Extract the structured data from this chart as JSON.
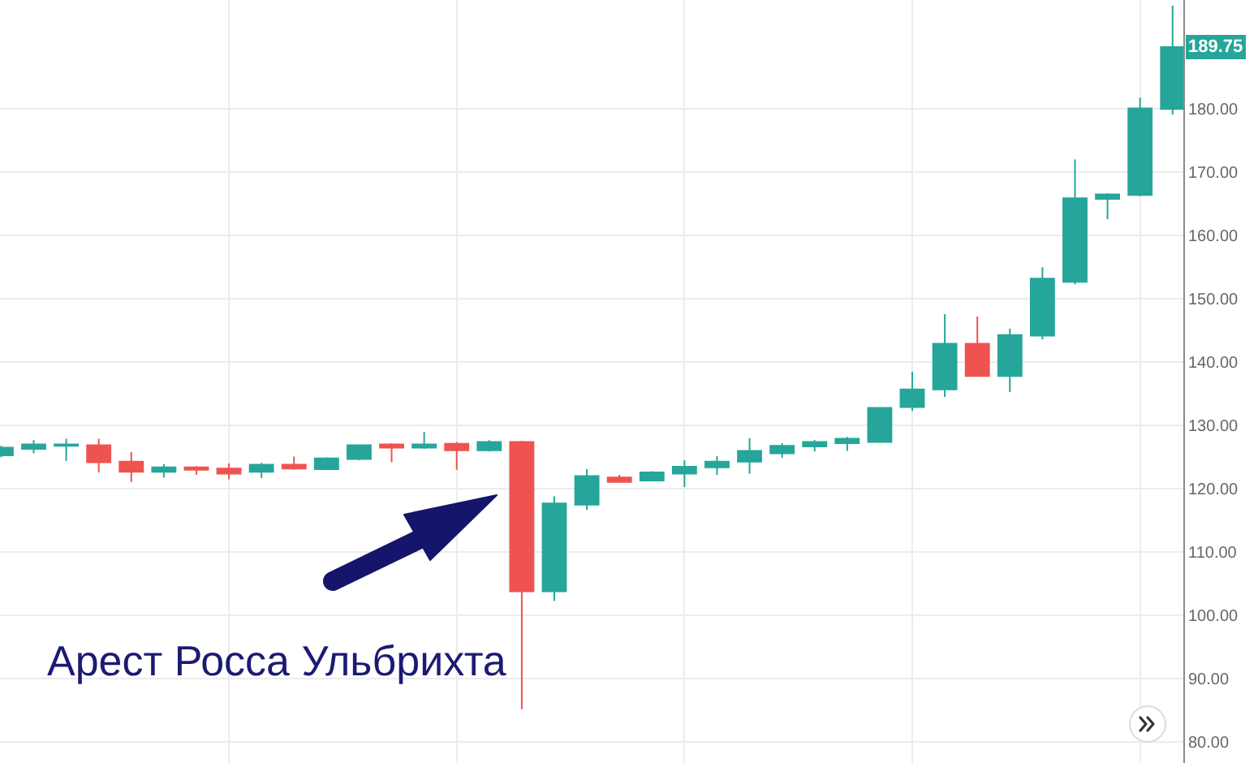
{
  "chart_data": {
    "type": "candlestick",
    "categories": [
      null,
      null,
      null,
      null,
      null,
      null,
      null,
      null,
      null,
      null,
      null,
      null,
      null,
      null,
      null,
      null,
      null,
      null,
      null,
      null,
      null,
      null,
      null,
      null,
      null,
      null,
      null,
      null,
      null,
      null,
      null,
      null,
      null,
      null,
      null,
      null,
      null
    ],
    "ohlc": [
      [
        125.3,
        126.8,
        125.0,
        126.5
      ],
      [
        126.3,
        127.7,
        125.6,
        127.0
      ],
      [
        126.8,
        127.9,
        124.4,
        127.0
      ],
      [
        126.9,
        127.9,
        122.6,
        124.2
      ],
      [
        124.3,
        125.8,
        121.1,
        122.7
      ],
      [
        122.7,
        123.9,
        121.8,
        123.4
      ],
      [
        123.4,
        123.6,
        122.2,
        123.0
      ],
      [
        123.2,
        124.0,
        121.5,
        122.4
      ],
      [
        122.7,
        124.1,
        121.7,
        123.8
      ],
      [
        123.8,
        125.1,
        123.0,
        123.2
      ],
      [
        123.1,
        125.0,
        123.0,
        124.8
      ],
      [
        124.7,
        127.0,
        124.5,
        126.9
      ],
      [
        127.0,
        127.2,
        124.2,
        126.5
      ],
      [
        126.5,
        129.0,
        126.3,
        127.0
      ],
      [
        127.1,
        127.4,
        123.0,
        126.1
      ],
      [
        126.1,
        127.7,
        125.9,
        127.4
      ],
      [
        127.4,
        127.6,
        85.2,
        103.8
      ],
      [
        103.8,
        118.8,
        102.3,
        117.7
      ],
      [
        117.5,
        123.1,
        116.7,
        122.0
      ],
      [
        121.8,
        122.2,
        121.0,
        121.1
      ],
      [
        121.3,
        122.8,
        121.2,
        122.6
      ],
      [
        122.4,
        124.5,
        120.3,
        123.5
      ],
      [
        123.4,
        125.2,
        122.2,
        124.3
      ],
      [
        124.3,
        128.0,
        122.4,
        126.0
      ],
      [
        125.6,
        127.2,
        124.9,
        126.8
      ],
      [
        126.7,
        127.7,
        125.9,
        127.4
      ],
      [
        127.2,
        128.2,
        126.0,
        127.9
      ],
      [
        127.4,
        132.9,
        127.3,
        132.8
      ],
      [
        132.9,
        138.5,
        132.3,
        135.7
      ],
      [
        135.7,
        147.6,
        134.5,
        142.9
      ],
      [
        142.9,
        147.2,
        137.8,
        137.8
      ],
      [
        137.8,
        145.3,
        135.3,
        144.3
      ],
      [
        144.2,
        155.0,
        143.6,
        153.2
      ],
      [
        152.7,
        172.0,
        152.3,
        165.9
      ],
      [
        165.8,
        166.7,
        162.6,
        166.5
      ],
      [
        166.4,
        181.8,
        166.2,
        180.1
      ],
      [
        180.0,
        196.3,
        179.1,
        189.75
      ]
    ],
    "colors": [
      "#26a69a",
      "#26a69a",
      "#26a69a",
      "#ef5350",
      "#ef5350",
      "#26a69a",
      "#ef5350",
      "#ef5350",
      "#26a69a",
      "#ef5350",
      "#26a69a",
      "#26a69a",
      "#ef5350",
      "#26a69a",
      "#ef5350",
      "#26a69a",
      "#ef5350",
      "#26a69a",
      "#26a69a",
      "#ef5350",
      "#26a69a",
      "#26a69a",
      "#26a69a",
      "#26a69a",
      "#26a69a",
      "#26a69a",
      "#26a69a",
      "#26a69a",
      "#26a69a",
      "#26a69a",
      "#ef5350",
      "#26a69a",
      "#26a69a",
      "#26a69a",
      "#26a69a",
      "#26a69a",
      "#26a69a"
    ],
    "ylim": [
      76.7,
      197.2
    ],
    "yticks": [
      {
        "value": 80,
        "label": "80.00"
      },
      {
        "value": 90,
        "label": "90.00"
      },
      {
        "value": 100,
        "label": "100.00"
      },
      {
        "value": 110,
        "label": "110.00"
      },
      {
        "value": 120,
        "label": "120.00"
      },
      {
        "value": 130,
        "label": "130.00"
      },
      {
        "value": 140,
        "label": "140.00"
      },
      {
        "value": 150,
        "label": "150.00"
      },
      {
        "value": 160,
        "label": "160.00"
      },
      {
        "value": 170,
        "label": "170.00"
      },
      {
        "value": 180,
        "label": "180.00"
      }
    ],
    "tick_labels": "y",
    "grid": true,
    "annotations": [
      "Арест Росса Ульбрихта",
      {
        "text": "189.75",
        "y": 189.75
      }
    ]
  }
}
